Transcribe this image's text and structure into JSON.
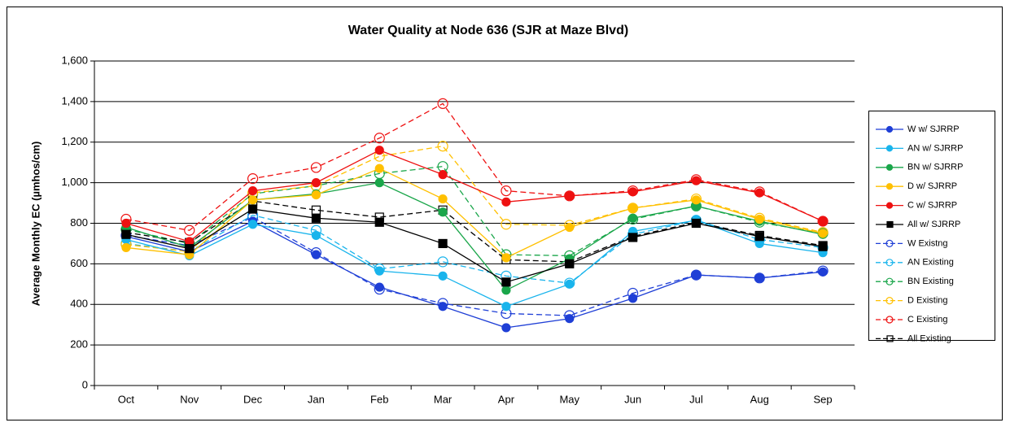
{
  "chart_data": {
    "type": "line",
    "title": "Water Quality at Node 636 (SJR at Maze Blvd)",
    "y_label": "Average Monthly EC (µmhos/cm)",
    "categories": [
      "Oct",
      "Nov",
      "Dec",
      "Jan",
      "Feb",
      "Mar",
      "Apr",
      "May",
      "Jun",
      "Jul",
      "Aug",
      "Sep"
    ],
    "ylim": [
      0,
      1600
    ],
    "yticks": [
      0,
      200,
      400,
      600,
      800,
      {
        "value": 1000,
        "label": "1,000"
      },
      {
        "value": 1200,
        "label": "1,200"
      },
      {
        "value": 1400,
        "label": "1,400"
      },
      {
        "value": 1600,
        "label": "1,600"
      }
    ],
    "grid": true,
    "legend": "right",
    "series": [
      {
        "name": "W w/ SJRRP",
        "color": "#1f3fd6",
        "marker": "circle",
        "filled": true,
        "dashed": false,
        "values": [
          735,
          660,
          810,
          645,
          485,
          390,
          285,
          330,
          430,
          545,
          530,
          560
        ]
      },
      {
        "name": "AN w/ SJRRP",
        "color": "#19b4ec",
        "marker": "circle",
        "filled": true,
        "dashed": false,
        "values": [
          720,
          640,
          795,
          740,
          565,
          540,
          390,
          500,
          760,
          815,
          700,
          655
        ]
      },
      {
        "name": "BN w/ SJRRP",
        "color": "#1aa64a",
        "marker": "circle",
        "filled": true,
        "dashed": false,
        "values": [
          780,
          680,
          915,
          945,
          1000,
          855,
          470,
          625,
          825,
          885,
          810,
          745
        ]
      },
      {
        "name": "D w/ SJRRP",
        "color": "#ffc000",
        "marker": "circle",
        "filled": true,
        "dashed": false,
        "values": [
          680,
          645,
          915,
          940,
          1070,
          920,
          630,
          780,
          875,
          915,
          820,
          750
        ]
      },
      {
        "name": "C w/ SJRRP",
        "color": "#ee1111",
        "marker": "circle",
        "filled": true,
        "dashed": false,
        "values": [
          800,
          710,
          960,
          1000,
          1160,
          1040,
          905,
          935,
          955,
          1010,
          950,
          810
        ]
      },
      {
        "name": "All w/ SJRRP",
        "color": "#000000",
        "marker": "square",
        "filled": true,
        "dashed": false,
        "values": [
          745,
          675,
          870,
          825,
          805,
          700,
          510,
          600,
          730,
          800,
          735,
          685
        ]
      },
      {
        "name": "W Existng",
        "color": "#1f3fd6",
        "marker": "circle",
        "filled": false,
        "dashed": true,
        "values": [
          740,
          690,
          830,
          655,
          475,
          405,
          355,
          345,
          455,
          545,
          530,
          565
        ]
      },
      {
        "name": "AN Existing",
        "color": "#19b4ec",
        "marker": "circle",
        "filled": false,
        "dashed": true,
        "values": [
          700,
          660,
          840,
          765,
          575,
          610,
          540,
          505,
          745,
          815,
          720,
          680
        ]
      },
      {
        "name": "BN Existing",
        "color": "#1aa64a",
        "marker": "circle",
        "filled": false,
        "dashed": true,
        "values": [
          770,
          700,
          945,
          985,
          1045,
          1080,
          645,
          640,
          820,
          885,
          805,
          750
        ]
      },
      {
        "name": "D Existing",
        "color": "#ffc000",
        "marker": "circle",
        "filled": false,
        "dashed": true,
        "values": [
          695,
          660,
          950,
          985,
          1130,
          1180,
          795,
          790,
          875,
          920,
          825,
          755
        ]
      },
      {
        "name": "C Existing",
        "color": "#ee1111",
        "marker": "circle",
        "filled": false,
        "dashed": true,
        "values": [
          820,
          765,
          1020,
          1075,
          1220,
          1390,
          960,
          935,
          960,
          1015,
          955,
          810
        ]
      },
      {
        "name": "All Existing",
        "color": "#000000",
        "marker": "square",
        "filled": false,
        "dashed": true,
        "values": [
          755,
          705,
          910,
          865,
          830,
          865,
          620,
          610,
          735,
          805,
          740,
          690
        ]
      }
    ]
  }
}
